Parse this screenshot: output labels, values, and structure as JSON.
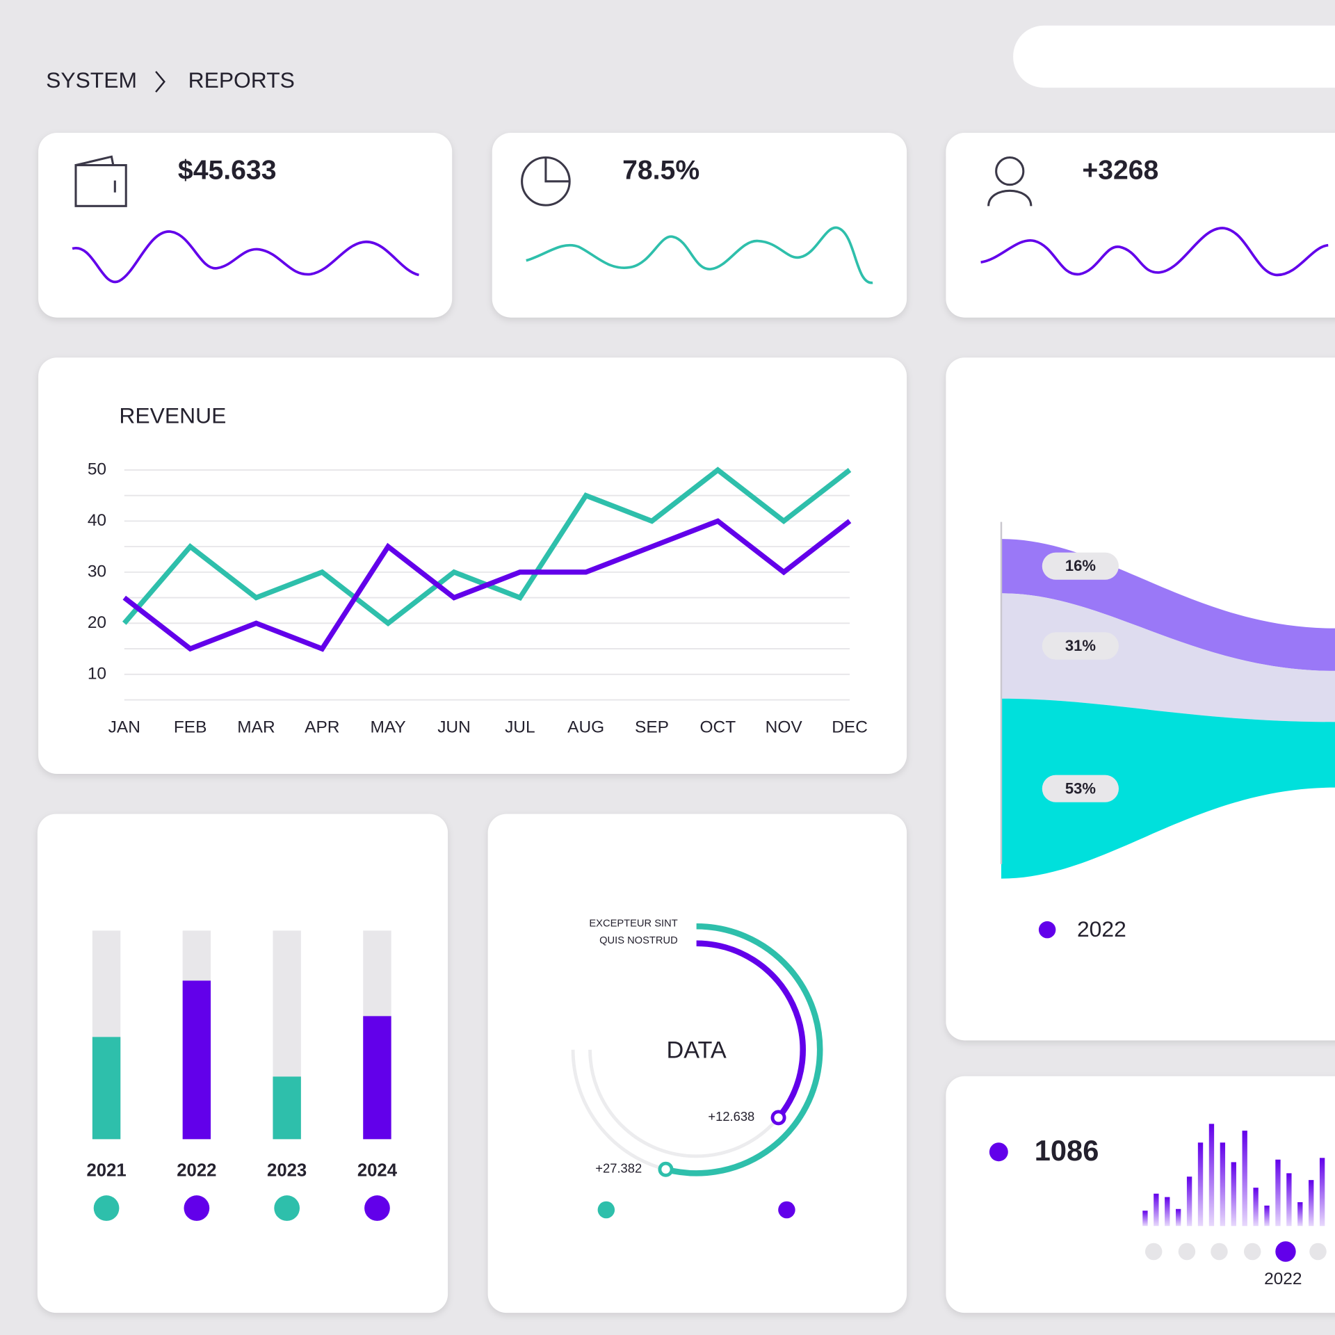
{
  "breadcrumb": [
    "SYSTEM",
    "REPORTS"
  ],
  "kpis": [
    {
      "value": "$45.633"
    },
    {
      "value": "78.5%"
    },
    {
      "value": "+3268"
    }
  ],
  "chart_data": [
    {
      "type": "line",
      "title": "REVENUE",
      "categories": [
        "JAN",
        "FEB",
        "MAR",
        "APR",
        "MAY",
        "JUN",
        "JUL",
        "AUG",
        "SEP",
        "OCT",
        "NOV",
        "DEC"
      ],
      "series": [
        {
          "color": "#2ebfab",
          "values": [
            20,
            35,
            25,
            30,
            20,
            30,
            25,
            45,
            40,
            50,
            40,
            50
          ]
        },
        {
          "color": "#6200ea",
          "values": [
            25,
            15,
            20,
            15,
            35,
            25,
            30,
            30,
            35,
            40,
            30,
            40
          ]
        }
      ],
      "ylim": [
        5,
        50
      ],
      "yticks": [
        10,
        20,
        30,
        40,
        50
      ],
      "minor_yticks": [
        5,
        15,
        25,
        35,
        45
      ],
      "grid": true
    },
    {
      "type": "progress",
      "categories": [
        "2021",
        "2022",
        "2023",
        "2024"
      ],
      "values": [
        49,
        76,
        30,
        59
      ],
      "colors": [
        "#2ebfab",
        "#6200ea",
        "#2ebfab",
        "#6200ea"
      ],
      "track_color": "#e8e7ea",
      "ylim": [
        0,
        100
      ]
    },
    {
      "type": "radial",
      "title": "DATA",
      "series": [
        {
          "name": "EXCEPTEUR SINT",
          "color": "#2ebfab",
          "values": [
            72
          ],
          "label": "+27.382"
        },
        {
          "name": "QUIS NOSTRUD",
          "color": "#6200ea",
          "values": [
            48
          ],
          "label": "+12.638"
        }
      ],
      "ylim": [
        0,
        100
      ],
      "track_color": "#ececee"
    },
    {
      "type": "stream",
      "series": [
        {
          "color": "#9a78f7",
          "values": [
            16
          ],
          "value_labels": [
            "16%"
          ]
        },
        {
          "color": "#dedcef",
          "values": [
            31
          ],
          "value_labels": [
            "31%"
          ]
        },
        {
          "color": "#00e0dc",
          "values": [
            53
          ],
          "value_labels": [
            "53%"
          ]
        }
      ],
      "ylim": [
        0,
        100
      ],
      "legend": "2022",
      "legend_color": "#6200ea"
    },
    {
      "type": "bar",
      "headline": "1086",
      "color": "#6200ea",
      "values": [
        18,
        38,
        34,
        20,
        58,
        98,
        120,
        98,
        75,
        112,
        45,
        24,
        78,
        62,
        28,
        54,
        80
      ],
      "ylim": [
        0,
        120
      ],
      "footer": "2022"
    }
  ]
}
